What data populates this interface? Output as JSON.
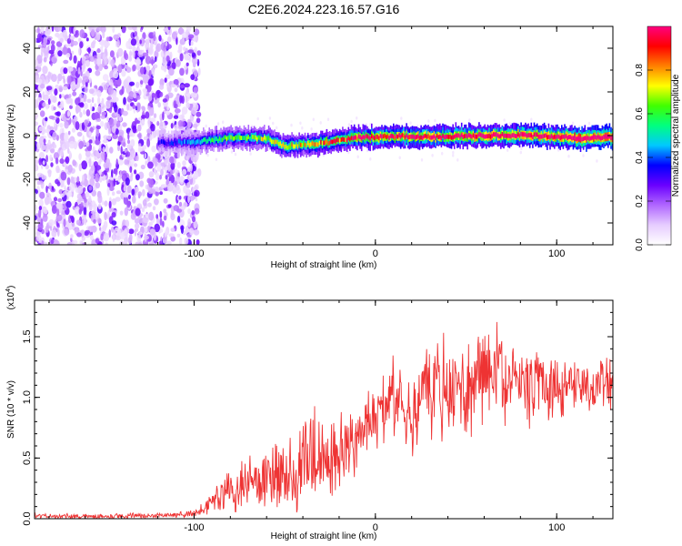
{
  "title": "C2E6.2024.223.16.57.G16",
  "chart_data": [
    {
      "type": "heatmap",
      "xlabel": "Height of straight line (km)",
      "ylabel": "Frequency (Hz)",
      "xlim": [
        -188,
        131
      ],
      "ylim": [
        -50,
        50
      ],
      "x_ticks": [
        -100,
        0,
        100
      ],
      "y_ticks": [
        -40,
        -20,
        0,
        20,
        40
      ],
      "colorbar": {
        "label": "Normalized spectral amplitude",
        "range": [
          0.0,
          1.0
        ],
        "ticks": [
          0.0,
          0.2,
          0.4,
          0.6,
          0.8
        ],
        "colors": [
          "#ffffff",
          "#e6ccff",
          "#b066ff",
          "#6a00ff",
          "#0000ff",
          "#00c8ff",
          "#00ff80",
          "#40ff00",
          "#ffff00",
          "#ff8000",
          "#ff0000",
          "#ff0080"
        ]
      },
      "noise_region": {
        "x_start": -188,
        "x_end": -97,
        "freq_range": [
          -50,
          50
        ],
        "amplitude": 0.1
      },
      "signal_band": {
        "x": [
          -120,
          -110,
          -100,
          -90,
          -80,
          -70,
          -60,
          -50,
          -40,
          -30,
          -20,
          -10,
          0,
          10,
          20,
          30,
          40,
          50,
          60,
          70,
          80,
          90,
          100,
          110,
          120,
          131
        ],
        "center_freq": [
          -3.5,
          -3,
          -3,
          -2,
          -1,
          -1,
          -1.5,
          -5,
          -4,
          -3.5,
          -2,
          -1,
          -0.5,
          -0.5,
          -0.5,
          -0.5,
          -0.5,
          0,
          0,
          0,
          0,
          0,
          -0.5,
          -1,
          -1,
          -0.5
        ],
        "amplitude": [
          0.25,
          0.3,
          0.35,
          0.45,
          0.5,
          0.5,
          0.55,
          0.6,
          0.6,
          0.65,
          0.7,
          0.75,
          0.8,
          0.78,
          0.8,
          0.8,
          0.8,
          0.82,
          0.85,
          0.82,
          0.85,
          0.85,
          0.85,
          0.95,
          0.95,
          0.9
        ]
      }
    },
    {
      "type": "line",
      "xlabel": "Height of straight line (km)",
      "ylabel": "SNR (10 * v/v)",
      "y_multiplier": "(x10",
      "y_multiplier_exp": "4",
      "y_multiplier_close": ")",
      "xlim": [
        -188,
        131
      ],
      "ylim": [
        0,
        1.8
      ],
      "x_ticks": [
        -100,
        0,
        100
      ],
      "y_ticks": [
        0.0,
        0.5,
        1.0,
        1.5
      ],
      "series": [
        {
          "color": "#ee3333",
          "x": [
            -188,
            -150,
            -110,
            -100,
            -95,
            -90,
            -85,
            -80,
            -75,
            -70,
            -65,
            -60,
            -55,
            -50,
            -45,
            -40,
            -35,
            -30,
            -25,
            -20,
            -15,
            -10,
            -5,
            0,
            5,
            10,
            15,
            20,
            25,
            30,
            35,
            40,
            45,
            50,
            55,
            60,
            65,
            70,
            75,
            80,
            85,
            90,
            95,
            100,
            105,
            110,
            115,
            120,
            125,
            131
          ],
          "y": [
            0.02,
            0.02,
            0.03,
            0.04,
            0.08,
            0.15,
            0.2,
            0.25,
            0.28,
            0.3,
            0.32,
            0.33,
            0.35,
            0.38,
            0.42,
            0.45,
            0.48,
            0.45,
            0.48,
            0.55,
            0.62,
            0.68,
            0.72,
            0.8,
            0.95,
            1.0,
            0.9,
            0.85,
            1.05,
            1.1,
            1.12,
            1.05,
            1.0,
            1.15,
            1.2,
            1.25,
            1.2,
            1.15,
            1.1,
            1.1,
            1.08,
            1.12,
            1.1,
            1.05,
            1.1,
            1.12,
            1.1,
            1.05,
            1.1,
            1.1
          ],
          "spread": [
            0.02,
            0.02,
            0.02,
            0.03,
            0.05,
            0.1,
            0.15,
            0.18,
            0.2,
            0.22,
            0.24,
            0.25,
            0.28,
            0.3,
            0.35,
            0.38,
            0.42,
            0.35,
            0.3,
            0.3,
            0.3,
            0.3,
            0.3,
            0.28,
            0.3,
            0.32,
            0.28,
            0.3,
            0.35,
            0.35,
            0.38,
            0.4,
            0.4,
            0.45,
            0.42,
            0.48,
            0.4,
            0.35,
            0.3,
            0.3,
            0.28,
            0.28,
            0.25,
            0.22,
            0.22,
            0.22,
            0.2,
            0.2,
            0.2,
            0.2
          ]
        }
      ]
    }
  ]
}
